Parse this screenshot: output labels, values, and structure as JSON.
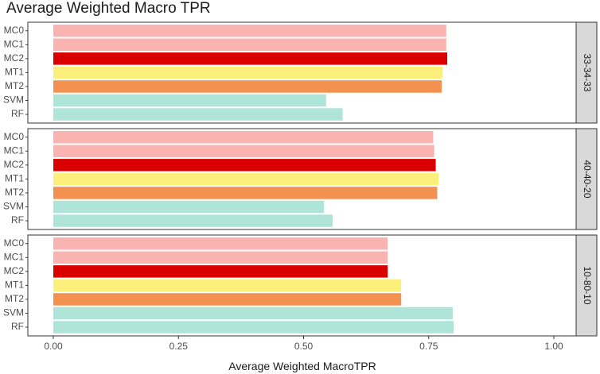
{
  "chart_data": {
    "type": "bar",
    "orientation": "horizontal",
    "title": "Average Weighted Macro TPR",
    "xlabel": "Average Weighted MacroTPR",
    "ylabel": "",
    "xlim": [
      0,
      1.05
    ],
    "x_ticks": [
      0.0,
      0.25,
      0.5,
      0.75,
      1.0
    ],
    "x_tick_labels": [
      "0.00",
      "0.25",
      "0.50",
      "0.75",
      "1.00"
    ],
    "categories": [
      "MC0",
      "MC1",
      "MC2",
      "MT1",
      "MT2",
      "SVM",
      "RF"
    ],
    "category_colors": {
      "MC0": "#f9b3b1",
      "MC1": "#f9b3b1",
      "MC2": "#d90000",
      "MT1": "#fdf07a",
      "MT2": "#f39150",
      "SVM": "#aee5d8",
      "RF": "#aee5d8"
    },
    "grid": false,
    "legend": "none",
    "panels": [
      {
        "strip": "33-34-33",
        "values": [
          0.785,
          0.785,
          0.787,
          0.778,
          0.776,
          0.545,
          0.578
        ]
      },
      {
        "strip": "40-40-20",
        "values": [
          0.759,
          0.761,
          0.764,
          0.77,
          0.767,
          0.541,
          0.558
        ]
      },
      {
        "strip": "10-80-10",
        "values": [
          0.668,
          0.668,
          0.668,
          0.695,
          0.695,
          0.798,
          0.8
        ]
      }
    ]
  }
}
